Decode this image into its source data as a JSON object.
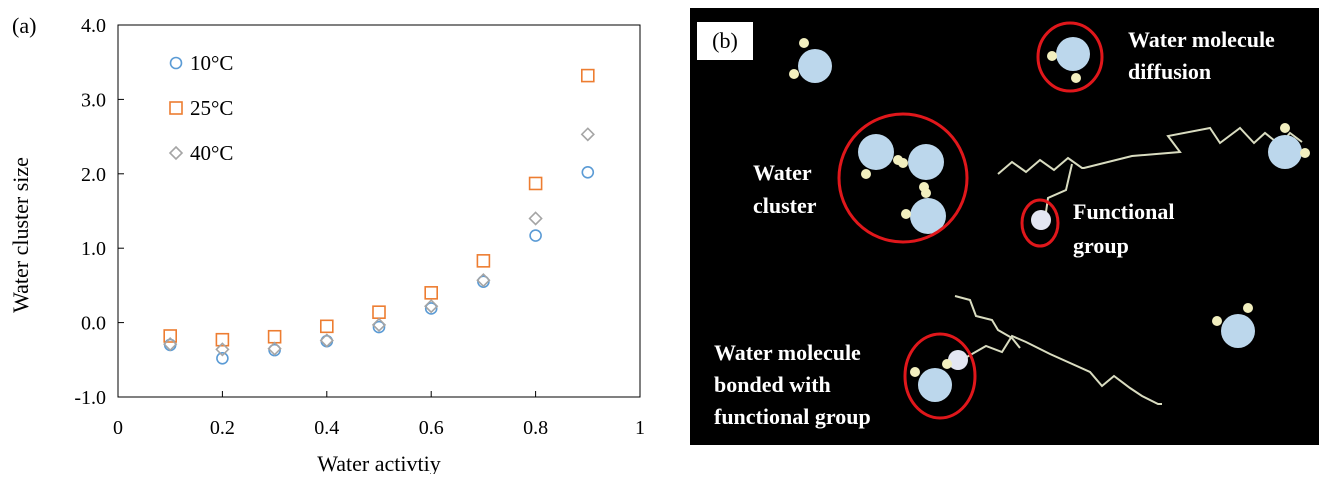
{
  "panel_a": {
    "label": "(a)"
  },
  "panel_b": {
    "label": "(b)"
  },
  "chart_data": {
    "type": "scatter",
    "title": "",
    "xlabel": "Water activtiy",
    "ylabel": "Water cluster size",
    "xlim": [
      0,
      1
    ],
    "ylim": [
      -1.0,
      4.0
    ],
    "x_ticks": [
      "0",
      "0.2",
      "0.4",
      "0.6",
      "0.8",
      "1"
    ],
    "y_ticks": [
      "-1.0",
      "0.0",
      "1.0",
      "2.0",
      "3.0",
      "4.0"
    ],
    "x": [
      0.1,
      0.2,
      0.3,
      0.4,
      0.5,
      0.6,
      0.7,
      0.8,
      0.9
    ],
    "series": [
      {
        "name": "10°C",
        "marker": "circle",
        "color": "#5B9BD5",
        "values": [
          -0.3,
          -0.48,
          -0.37,
          -0.25,
          -0.06,
          0.19,
          0.55,
          1.17,
          2.02
        ]
      },
      {
        "name": "25°C",
        "marker": "square",
        "color": "#ED7D31",
        "values": [
          -0.18,
          -0.23,
          -0.19,
          -0.05,
          0.14,
          0.4,
          0.83,
          1.87,
          3.32
        ]
      },
      {
        "name": "40°C",
        "marker": "diamond",
        "color": "#A5A5A5",
        "values": [
          -0.29,
          -0.36,
          -0.35,
          -0.24,
          -0.03,
          0.22,
          0.57,
          1.4,
          2.53
        ]
      }
    ],
    "legend_position": "top-left",
    "grid": false
  },
  "diagram": {
    "labels": {
      "diffusion_line1": "Water molecule",
      "diffusion_line2": "diffusion",
      "cluster_line1": "Water",
      "cluster_line2": "cluster",
      "functional_line1": "Functional",
      "functional_line2": "group",
      "bonded_line1": "Water molecule",
      "bonded_line2": "bonded with",
      "bonded_line3": "functional group"
    }
  }
}
